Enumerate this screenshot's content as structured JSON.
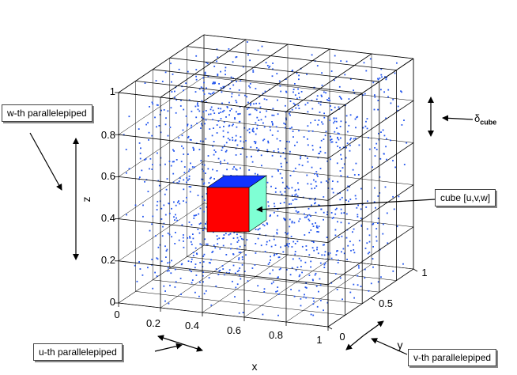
{
  "callouts": {
    "w": "w-th parallelepiped",
    "u": "u-th parallelepiped",
    "v": "v-th parallelepiped",
    "cube": "cube [u,v,w]",
    "delta_symbol": "δ",
    "delta_sub": "cube"
  },
  "axes": {
    "x_label": "x",
    "y_label": "y",
    "z_label": "z",
    "x_ticks": [
      "0",
      "0.2",
      "0.4",
      "0.6",
      "0.8",
      "1"
    ],
    "y_ticks": [
      "0",
      "0.5",
      "1"
    ],
    "z_ticks": [
      "0",
      "0.2",
      "0.4",
      "0.6",
      "0.8",
      "1"
    ]
  },
  "grid": {
    "divisions": 5
  },
  "colors": {
    "points": "#2255ee",
    "cube_front": "#ff0000",
    "cube_top": "#1133ff",
    "cube_side": "#7fffd4",
    "grid_lines": "#000000"
  },
  "point_count": 1400
}
